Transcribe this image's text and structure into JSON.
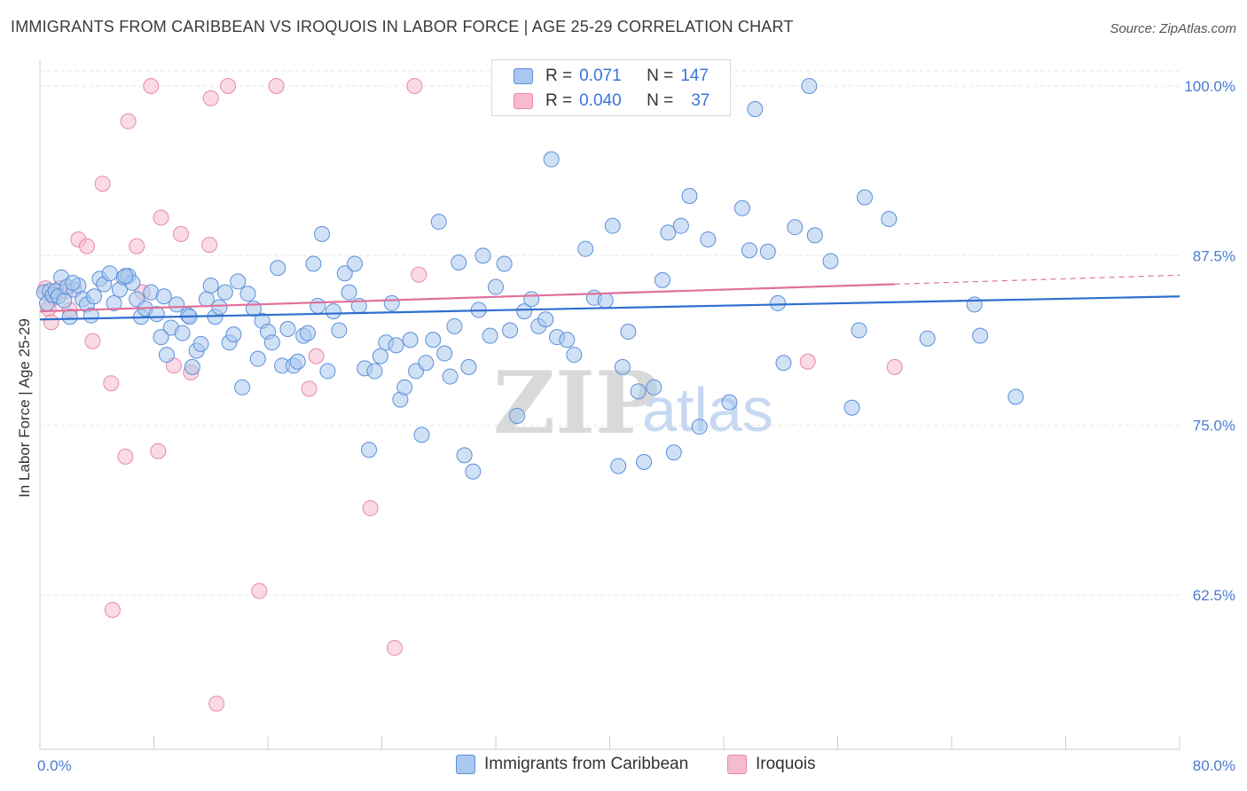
{
  "header": {
    "title": "IMMIGRANTS FROM CARIBBEAN VS IROQUOIS IN LABOR FORCE | AGE 25-29 CORRELATION CHART",
    "source": "Source: ZipAtlas.com"
  },
  "legend_top": {
    "rows": [
      {
        "r_label": "R =",
        "r_value": "0.071",
        "n_label": "N =",
        "n_value": "147"
      },
      {
        "r_label": "R =",
        "r_value": "0.040",
        "n_label": "N =",
        "n_value": "37"
      }
    ]
  },
  "legend_bottom": {
    "items": [
      "Immigrants from Caribbean",
      "Iroquois"
    ]
  },
  "colors": {
    "blue_fill": "#aac8ef",
    "blue_stroke": "#5b8fd8",
    "blue_line": "#2f6fcf",
    "pink_fill": "#f6bccd",
    "pink_stroke": "#e58aa8",
    "pink_line": "#e0709a",
    "tick_text": "#4a7bd0",
    "grid": "#e6e6e6"
  },
  "chart_data": {
    "type": "scatter",
    "title": "IMMIGRANTS FROM CARIBBEAN VS IROQUOIS IN LABOR FORCE | AGE 25-29 CORRELATION CHART",
    "xlabel": "",
    "ylabel": "In Labor Force | Age 25-29",
    "xlim": [
      0,
      80
    ],
    "ylim": [
      50,
      102
    ],
    "x_tick_labels": [
      "0.0%",
      "80.0%"
    ],
    "y_ticks": [
      62.5,
      75.0,
      87.5,
      100.0
    ],
    "y_tick_labels": [
      "62.5%",
      "75.0%",
      "87.5%",
      "100.0%"
    ],
    "grid": true,
    "watermark": "ZIPatlas",
    "series": [
      {
        "name": "Immigrants from Caribbean",
        "color": "#aac8ef",
        "trend": {
          "x": [
            0,
            80
          ],
          "y": [
            82.8,
            84.5
          ]
        },
        "points": [
          [
            0.3,
            84.8
          ],
          [
            0.5,
            84.0
          ],
          [
            0.7,
            84.9
          ],
          [
            0.9,
            84.6
          ],
          [
            1.1,
            84.9
          ],
          [
            1.3,
            84.5
          ],
          [
            1.5,
            85.9
          ],
          [
            1.7,
            84.2
          ],
          [
            1.9,
            85.2
          ],
          [
            2.1,
            83.0
          ],
          [
            2.4,
            85.0
          ],
          [
            2.7,
            85.3
          ],
          [
            3.0,
            84.3
          ],
          [
            3.3,
            83.9
          ],
          [
            3.6,
            83.1
          ],
          [
            4.2,
            85.8
          ],
          [
            4.5,
            85.4
          ],
          [
            4.9,
            86.2
          ],
          [
            5.2,
            84.0
          ],
          [
            5.6,
            85.0
          ],
          [
            5.9,
            85.9
          ],
          [
            6.2,
            86.0
          ],
          [
            6.5,
            85.5
          ],
          [
            6.8,
            84.3
          ],
          [
            7.1,
            83.0
          ],
          [
            7.4,
            83.6
          ],
          [
            7.8,
            84.8
          ],
          [
            8.2,
            83.2
          ],
          [
            8.7,
            84.5
          ],
          [
            8.9,
            80.2
          ],
          [
            9.2,
            82.2
          ],
          [
            9.6,
            83.9
          ],
          [
            10.0,
            81.8
          ],
          [
            10.4,
            83.1
          ],
          [
            10.7,
            79.3
          ],
          [
            11.0,
            80.5
          ],
          [
            11.3,
            81.0
          ],
          [
            11.7,
            84.3
          ],
          [
            12.0,
            85.3
          ],
          [
            12.3,
            83.0
          ],
          [
            12.6,
            83.7
          ],
          [
            13.0,
            84.8
          ],
          [
            13.3,
            81.1
          ],
          [
            13.6,
            81.7
          ],
          [
            13.9,
            85.6
          ],
          [
            14.2,
            77.8
          ],
          [
            14.6,
            84.7
          ],
          [
            15.0,
            83.6
          ],
          [
            15.3,
            79.9
          ],
          [
            15.6,
            82.7
          ],
          [
            16.0,
            81.9
          ],
          [
            16.3,
            81.1
          ],
          [
            16.7,
            86.6
          ],
          [
            17.0,
            79.4
          ],
          [
            17.4,
            82.1
          ],
          [
            17.8,
            79.4
          ],
          [
            18.1,
            79.7
          ],
          [
            18.5,
            81.6
          ],
          [
            18.8,
            81.8
          ],
          [
            19.2,
            86.9
          ],
          [
            19.5,
            83.8
          ],
          [
            19.8,
            89.1
          ],
          [
            20.2,
            79.0
          ],
          [
            20.6,
            83.4
          ],
          [
            21.0,
            82.0
          ],
          [
            21.4,
            86.2
          ],
          [
            21.7,
            84.8
          ],
          [
            22.1,
            86.9
          ],
          [
            22.4,
            83.8
          ],
          [
            22.8,
            79.2
          ],
          [
            23.1,
            73.2
          ],
          [
            23.5,
            79.0
          ],
          [
            23.9,
            80.1
          ],
          [
            24.3,
            81.1
          ],
          [
            24.7,
            84.0
          ],
          [
            25.0,
            80.9
          ],
          [
            25.3,
            76.9
          ],
          [
            25.6,
            77.8
          ],
          [
            26.0,
            81.3
          ],
          [
            26.4,
            79.0
          ],
          [
            26.8,
            74.3
          ],
          [
            27.1,
            79.6
          ],
          [
            27.6,
            81.3
          ],
          [
            28.0,
            90.0
          ],
          [
            28.4,
            80.3
          ],
          [
            28.8,
            78.6
          ],
          [
            29.1,
            82.3
          ],
          [
            29.4,
            87.0
          ],
          [
            29.8,
            72.8
          ],
          [
            30.1,
            79.3
          ],
          [
            30.4,
            71.6
          ],
          [
            30.8,
            83.5
          ],
          [
            31.1,
            87.5
          ],
          [
            31.6,
            81.6
          ],
          [
            32.0,
            85.2
          ],
          [
            32.6,
            86.9
          ],
          [
            33.0,
            82.0
          ],
          [
            33.5,
            75.7
          ],
          [
            34.0,
            83.4
          ],
          [
            34.5,
            84.3
          ],
          [
            35.0,
            82.3
          ],
          [
            35.5,
            82.8
          ],
          [
            35.9,
            94.6
          ],
          [
            36.3,
            81.5
          ],
          [
            37.0,
            81.3
          ],
          [
            37.5,
            80.2
          ],
          [
            38.3,
            88.0
          ],
          [
            38.9,
            84.4
          ],
          [
            39.7,
            84.2
          ],
          [
            40.2,
            89.7
          ],
          [
            40.6,
            72.0
          ],
          [
            40.9,
            79.3
          ],
          [
            41.3,
            81.9
          ],
          [
            42.0,
            77.5
          ],
          [
            42.4,
            72.3
          ],
          [
            43.1,
            77.8
          ],
          [
            43.7,
            85.7
          ],
          [
            44.1,
            89.2
          ],
          [
            44.5,
            73.0
          ],
          [
            45.0,
            89.7
          ],
          [
            45.6,
            91.9
          ],
          [
            46.3,
            74.9
          ],
          [
            46.9,
            88.7
          ],
          [
            48.4,
            76.7
          ],
          [
            49.3,
            91.0
          ],
          [
            49.8,
            87.9
          ],
          [
            50.2,
            98.3
          ],
          [
            51.1,
            87.8
          ],
          [
            51.8,
            84.0
          ],
          [
            52.2,
            79.6
          ],
          [
            53.0,
            89.6
          ],
          [
            54.0,
            100.0
          ],
          [
            54.4,
            89.0
          ],
          [
            55.5,
            87.1
          ],
          [
            57.0,
            76.3
          ],
          [
            57.5,
            82.0
          ],
          [
            57.9,
            91.8
          ],
          [
            59.6,
            90.2
          ],
          [
            62.3,
            81.4
          ],
          [
            65.6,
            83.9
          ],
          [
            66.0,
            81.6
          ],
          [
            68.5,
            77.1
          ],
          [
            10.5,
            83.0
          ],
          [
            8.5,
            81.5
          ],
          [
            6.0,
            86.0
          ],
          [
            3.8,
            84.5
          ],
          [
            2.3,
            85.5
          ]
        ]
      },
      {
        "name": "Iroquois",
        "color": "#f6bccd",
        "trend": {
          "x": [
            0,
            60
          ],
          "y": [
            83.4,
            85.4
          ]
        },
        "points": [
          [
            0.4,
            85.1
          ],
          [
            0.6,
            83.6
          ],
          [
            0.8,
            82.6
          ],
          [
            1.0,
            84.4
          ],
          [
            1.4,
            85.1
          ],
          [
            2.1,
            83.5
          ],
          [
            2.7,
            88.7
          ],
          [
            3.3,
            88.2
          ],
          [
            3.7,
            81.2
          ],
          [
            4.4,
            92.8
          ],
          [
            5.0,
            78.1
          ],
          [
            6.0,
            72.7
          ],
          [
            6.2,
            97.4
          ],
          [
            6.8,
            88.2
          ],
          [
            7.8,
            100.0
          ],
          [
            8.3,
            73.1
          ],
          [
            8.5,
            90.3
          ],
          [
            9.4,
            79.4
          ],
          [
            9.9,
            89.1
          ],
          [
            10.6,
            78.9
          ],
          [
            11.9,
            88.3
          ],
          [
            12.0,
            99.1
          ],
          [
            12.4,
            54.5
          ],
          [
            13.2,
            100.0
          ],
          [
            15.4,
            62.8
          ],
          [
            16.6,
            100.0
          ],
          [
            18.9,
            77.7
          ],
          [
            19.4,
            80.1
          ],
          [
            23.2,
            68.9
          ],
          [
            24.9,
            58.6
          ],
          [
            26.3,
            100.0
          ],
          [
            26.6,
            86.1
          ],
          [
            53.9,
            79.7
          ],
          [
            60.0,
            79.3
          ],
          [
            5.1,
            61.4
          ],
          [
            7.2,
            84.8
          ],
          [
            1.8,
            84.9
          ]
        ]
      }
    ]
  }
}
